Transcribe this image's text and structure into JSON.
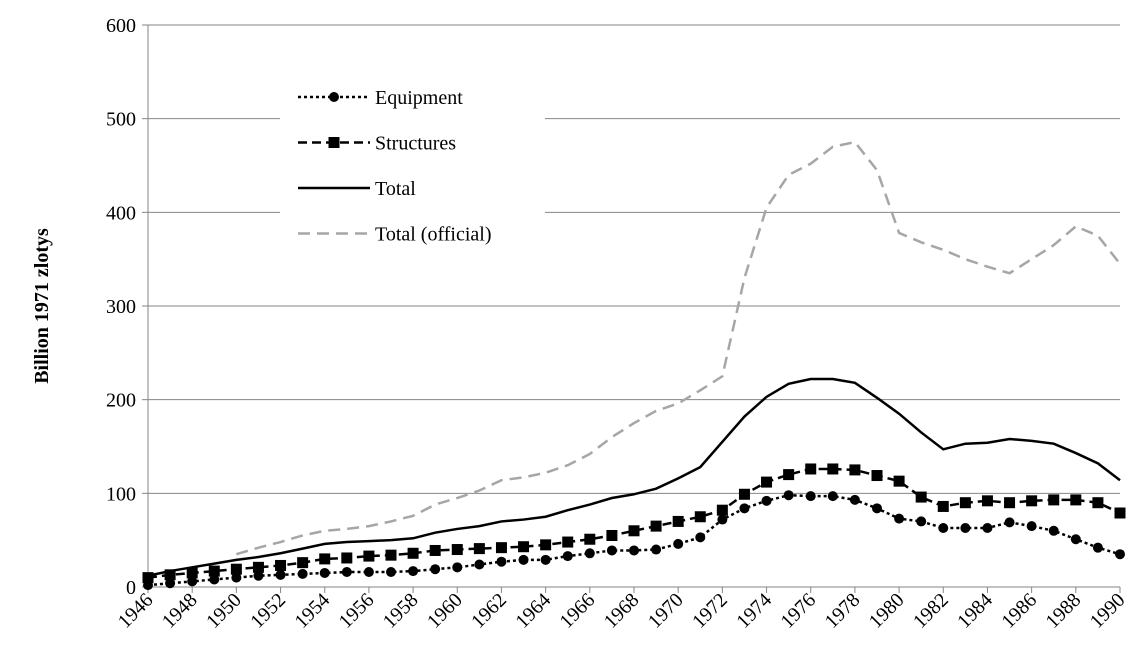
{
  "chart_data": {
    "type": "line",
    "y_label": "Billion 1971 zlotys",
    "x": [
      1946,
      1947,
      1948,
      1949,
      1950,
      1951,
      1952,
      1953,
      1954,
      1955,
      1956,
      1957,
      1958,
      1959,
      1960,
      1961,
      1962,
      1963,
      1964,
      1965,
      1966,
      1967,
      1968,
      1969,
      1970,
      1971,
      1972,
      1973,
      1974,
      1975,
      1976,
      1977,
      1978,
      1979,
      1980,
      1981,
      1982,
      1983,
      1984,
      1985,
      1986,
      1987,
      1988,
      1989,
      1990
    ],
    "xlim": [
      1946,
      1990
    ],
    "xticks": [
      1946,
      1948,
      1950,
      1952,
      1954,
      1956,
      1958,
      1960,
      1962,
      1964,
      1966,
      1968,
      1970,
      1972,
      1974,
      1976,
      1978,
      1980,
      1982,
      1984,
      1986,
      1988,
      1990
    ],
    "ylim": [
      0,
      600
    ],
    "yticks": [
      0,
      100,
      200,
      300,
      400,
      500,
      600
    ],
    "grid": true,
    "legend": "upper-left",
    "series": [
      {
        "name": "Equipment",
        "color": "#000000",
        "dash": "3,3",
        "marker": "circle",
        "values": [
          2,
          4,
          6,
          8,
          10,
          12,
          13,
          14,
          15,
          16,
          16,
          16,
          17,
          19,
          21,
          24,
          27,
          29,
          29,
          33,
          36,
          39,
          39,
          40,
          46,
          53,
          72,
          84,
          92,
          98,
          97,
          97,
          93,
          84,
          73,
          70,
          63,
          63,
          63,
          69,
          65,
          60,
          51,
          42,
          35
        ]
      },
      {
        "name": "Structures",
        "color": "#000000",
        "dash": "9,5",
        "marker": "square",
        "values": [
          10,
          13,
          15,
          17,
          19,
          21,
          23,
          26,
          30,
          31,
          33,
          34,
          36,
          39,
          40,
          41,
          42,
          43,
          45,
          48,
          51,
          55,
          60,
          65,
          70,
          75,
          82,
          99,
          112,
          120,
          126,
          126,
          125,
          119,
          113,
          96,
          86,
          90,
          92,
          90,
          92,
          93,
          93,
          90,
          79
        ]
      },
      {
        "name": "Total",
        "color": "#000000",
        "dash": "none",
        "marker": "none",
        "values": [
          12,
          17,
          21,
          25,
          29,
          32,
          36,
          41,
          46,
          48,
          49,
          50,
          52,
          58,
          62,
          65,
          70,
          72,
          75,
          82,
          88,
          95,
          99,
          105,
          116,
          128,
          155,
          182,
          203,
          217,
          222,
          222,
          218,
          202,
          185,
          165,
          147,
          153,
          154,
          158,
          156,
          153,
          143,
          132,
          114
        ]
      },
      {
        "name": "Total (official)",
        "color": "#a6a6a6",
        "dash": "12,7",
        "marker": "none",
        "values": [
          null,
          null,
          null,
          null,
          35,
          42,
          48,
          55,
          60,
          62,
          65,
          70,
          76,
          88,
          95,
          103,
          114,
          117,
          122,
          130,
          142,
          160,
          175,
          188,
          196,
          210,
          225,
          330,
          405,
          440,
          452,
          470,
          475,
          445,
          378,
          368,
          360,
          350,
          342,
          335,
          350,
          365,
          385,
          375,
          345
        ]
      }
    ]
  }
}
